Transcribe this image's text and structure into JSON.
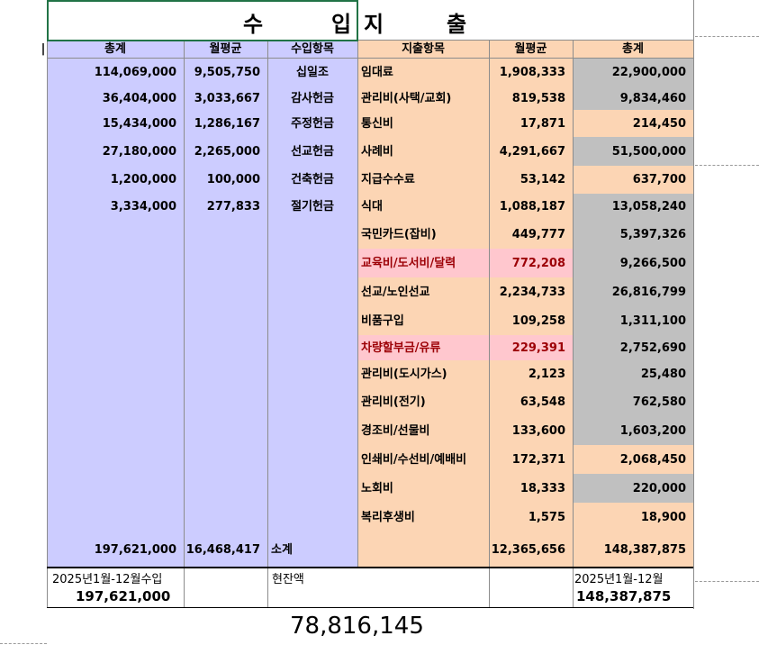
{
  "title": {
    "ch1": "수",
    "ch2": "입",
    "ch3": "지",
    "ch4": "출"
  },
  "headers": {
    "left_stub": "|",
    "income_total": "총계",
    "income_avg": "월평균",
    "income_item": "수입항목",
    "expense_item": "지출항목",
    "expense_avg": "월평균",
    "expense_total": "총계"
  },
  "income_rows": [
    {
      "total": "114,069,000",
      "avg": "9,505,750",
      "item": "십일조"
    },
    {
      "total": "36,404,000",
      "avg": "3,033,667",
      "item": "감사헌금"
    },
    {
      "total": "15,434,000",
      "avg": "1,286,167",
      "item": "주정헌금"
    },
    {
      "total": "27,180,000",
      "avg": "2,265,000",
      "item": "선교헌금"
    },
    {
      "total": "1,200,000",
      "avg": "100,000",
      "item": "건축헌금"
    },
    {
      "total": "3,334,000",
      "avg": "277,833",
      "item": "절기헌금"
    }
  ],
  "expense_rows": [
    {
      "item": "임대료",
      "avg": "1,908,333",
      "total": "22,900,000",
      "item_color": "orange",
      "total_color": "gray"
    },
    {
      "item": "관리비(사택/교회)",
      "avg": "819,538",
      "total": "9,834,460",
      "item_color": "orange",
      "total_color": "gray"
    },
    {
      "item": "통신비",
      "avg": "17,871",
      "total": "214,450",
      "item_color": "orange",
      "total_color": "orange"
    },
    {
      "item": "사례비",
      "avg": "4,291,667",
      "total": "51,500,000",
      "item_color": "orange",
      "total_color": "gray"
    },
    {
      "item": "지급수수료",
      "avg": "53,142",
      "total": "637,700",
      "item_color": "orange",
      "total_color": "orange"
    },
    {
      "item": "식대",
      "avg": "1,088,187",
      "total": "13,058,240",
      "item_color": "orange",
      "total_color": "gray"
    },
    {
      "item": "국민카드(잡비)",
      "avg": "449,777",
      "total": "5,397,326",
      "item_color": "orange",
      "total_color": "gray"
    },
    {
      "item": "교육비/도서비/달력",
      "avg": "772,208",
      "total": "9,266,500",
      "item_color": "pink",
      "total_color": "gray"
    },
    {
      "item": "선교/노인선교",
      "avg": "2,234,733",
      "total": "26,816,799",
      "item_color": "orange",
      "total_color": "gray"
    },
    {
      "item": "비품구입",
      "avg": "109,258",
      "total": "1,311,100",
      "item_color": "orange",
      "total_color": "gray"
    },
    {
      "item": "차량할부금/유류",
      "avg": "229,391",
      "total": "2,752,690",
      "item_color": "pink",
      "total_color": "gray"
    },
    {
      "item": "관리비(도시가스)",
      "avg": "2,123",
      "total": "25,480",
      "item_color": "orange",
      "total_color": "gray"
    },
    {
      "item": "관리비(전기)",
      "avg": "63,548",
      "total": "762,580",
      "item_color": "orange",
      "total_color": "gray"
    },
    {
      "item": "경조비/선물비",
      "avg": "133,600",
      "total": "1,603,200",
      "item_color": "orange",
      "total_color": "gray"
    },
    {
      "item": "인쇄비/수선비/예배비",
      "avg": "172,371",
      "total": "2,068,450",
      "item_color": "orange",
      "total_color": "orange"
    },
    {
      "item": "노회비",
      "avg": "18,333",
      "total": "220,000",
      "item_color": "orange",
      "total_color": "gray"
    },
    {
      "item": "복리후생비",
      "avg": "1,575",
      "total": "18,900",
      "item_color": "orange",
      "total_color": "orange"
    }
  ],
  "subtotal": {
    "income_total": "197,621,000",
    "income_avg": "16,468,417",
    "label": "소계",
    "expense_avg": "12,365,656",
    "expense_total": "148,387,875"
  },
  "summary": {
    "income_label": "2025년1월-12월수입",
    "income_value": "197,621,000",
    "balance_label": "현잔액",
    "expense_label": "2025년1월-12월",
    "expense_value": "148,387,875",
    "balance_value": "78,816,145"
  },
  "colors": {
    "lavender": "#ccccff",
    "orange": "#fcd5b4",
    "gray": "#c0c0c0",
    "pink": "#ffc7ce",
    "pink_text": "#9c0006",
    "selection": "#217346"
  }
}
